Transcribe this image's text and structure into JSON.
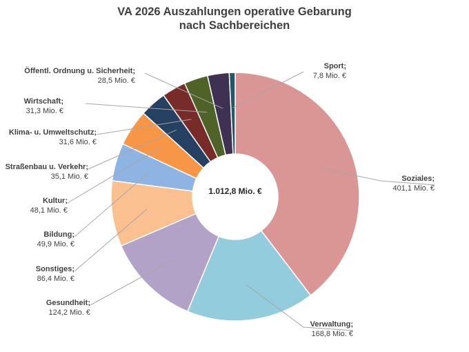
{
  "chart_data": {
    "type": "pie",
    "variant": "donut",
    "title": "VA 2026 Auszahlungen operative Gebarung\nnach Sachbereichen",
    "title_lines": [
      "VA 2026 Auszahlungen operative Gebarung",
      "nach Sachbereichen"
    ],
    "center_label": "1.012,8 Mio. €",
    "total": 1012.8,
    "unit": "Mio. €",
    "slices": [
      {
        "name": "Soziales",
        "label": "Soziales;",
        "value": 401.1,
        "value_label": "401,1 Mio. €",
        "color": "#d99694"
      },
      {
        "name": "Verwaltung",
        "label": "Verwaltung;",
        "value": 168.8,
        "value_label": "168,8 Mio. €",
        "color": "#93cddd"
      },
      {
        "name": "Gesundheit",
        "label": "Gesundheit;",
        "value": 124.2,
        "value_label": "124,2 Mio. €",
        "color": "#b3a2c7"
      },
      {
        "name": "Sonstiges",
        "label": "Sonstiges;",
        "value": 86.4,
        "value_label": "86,4 Mio. €",
        "color": "#fac090"
      },
      {
        "name": "Bildung",
        "label": "Bildung;",
        "value": 49.9,
        "value_label": "49,9 Mio. €",
        "color": "#8eb4e3"
      },
      {
        "name": "Kultur",
        "label": "Kultur;",
        "value": 48.1,
        "value_label": "48,1 Mio. €",
        "color": "#f79646"
      },
      {
        "name": "Straßenbau u. Verkehr",
        "label": "Straßenbau u. Verkehr;",
        "value": 35.1,
        "value_label": "35,1 Mio. €",
        "color": "#254061"
      },
      {
        "name": "Klima- u. Umweltschutz",
        "label": "Klima- u. Umweltschutz;",
        "value": 31.6,
        "value_label": "31,6 Mio. €",
        "color": "#772c2a"
      },
      {
        "name": "Wirtschaft",
        "label": "Wirtschaft;",
        "value": 31.3,
        "value_label": "31,3 Mio. €",
        "color": "#4f6228"
      },
      {
        "name": "Öffentl. Ordnung u. Sicherheit",
        "label": "Öffentl. Ordnung u. Sicherheit;",
        "value": 28.5,
        "value_label": "28,5 Mio. €",
        "color": "#3f3151"
      },
      {
        "name": "Sport",
        "label": "Sport;",
        "value": 7.8,
        "value_label": "7,8 Mio. €",
        "color": "#215968"
      }
    ]
  }
}
